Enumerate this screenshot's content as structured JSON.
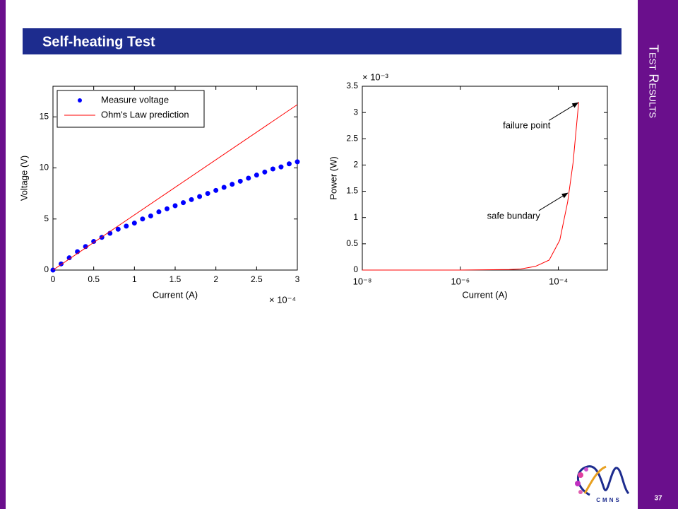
{
  "slide": {
    "title": "Self-heating Test",
    "section": "Test Results",
    "page": "37",
    "logo_text": "CMNS"
  },
  "chart_data": [
    {
      "type": "line",
      "x_label": "Current (A)",
      "y_label": "Voltage (V)",
      "x_multiplier": "× 10⁻⁴",
      "xlim": [
        0,
        3
      ],
      "ylim": [
        0,
        18
      ],
      "xticks": [
        0,
        0.5,
        1,
        1.5,
        2,
        2.5,
        3
      ],
      "yticks": [
        0,
        5,
        10,
        15
      ],
      "legend": "upper left",
      "series": [
        {
          "name": "Measure voltage",
          "color": "#0000ff",
          "mode": "markers",
          "x": [
            0,
            0.1,
            0.2,
            0.3,
            0.4,
            0.5,
            0.6,
            0.7,
            0.8,
            0.9,
            1.0,
            1.1,
            1.2,
            1.3,
            1.4,
            1.5,
            1.6,
            1.7,
            1.8,
            1.9,
            2.0,
            2.1,
            2.2,
            2.3,
            2.4,
            2.5,
            2.6,
            2.7,
            2.8,
            2.9,
            3.0
          ],
          "values": [
            0,
            0.6,
            1.2,
            1.8,
            2.3,
            2.8,
            3.2,
            3.6,
            4.0,
            4.3,
            4.6,
            5.0,
            5.3,
            5.7,
            6.0,
            6.3,
            6.6,
            6.9,
            7.2,
            7.5,
            7.8,
            8.1,
            8.4,
            8.7,
            9.0,
            9.3,
            9.6,
            9.9,
            10.1,
            10.4,
            10.6
          ]
        },
        {
          "name": "Ohm's Law prediction",
          "color": "#ff0000",
          "mode": "line",
          "x": [
            0,
            3
          ],
          "values": [
            0,
            16.2
          ]
        }
      ]
    },
    {
      "type": "line",
      "x_label": "Current (A)",
      "y_label": "Power (W)",
      "y_multiplier": "× 10⁻³",
      "xscale": "log",
      "xlim": [
        1e-08,
        0.001
      ],
      "ylim": [
        0,
        3.5
      ],
      "xticks": [
        {
          "value": 1e-08,
          "label": "10⁻⁸"
        },
        {
          "value": 1e-06,
          "label": "10⁻⁶"
        },
        {
          "value": 0.0001,
          "label": "10⁻⁴"
        }
      ],
      "yticks": [
        0,
        0.5,
        1,
        1.5,
        2,
        2.5,
        3,
        3.5
      ],
      "series": [
        {
          "color": "#ff0000",
          "mode": "line",
          "x": [
            1e-08,
            1e-07,
            1e-06,
            1e-05,
            1.7e-05,
            3.4e-05,
            6.5e-05,
            0.000107,
            0.000155,
            0.0002,
            0.00026
          ],
          "values": [
            0,
            0,
            0,
            0.01,
            0.02,
            0.07,
            0.19,
            0.57,
            1.3,
            2.05,
            3.2
          ]
        }
      ],
      "annotations": [
        {
          "text": "failure point",
          "x": 0.00026,
          "y": 3.2
        },
        {
          "text": "safe bundary",
          "x": 0.00016,
          "y": 1.48
        }
      ]
    }
  ]
}
